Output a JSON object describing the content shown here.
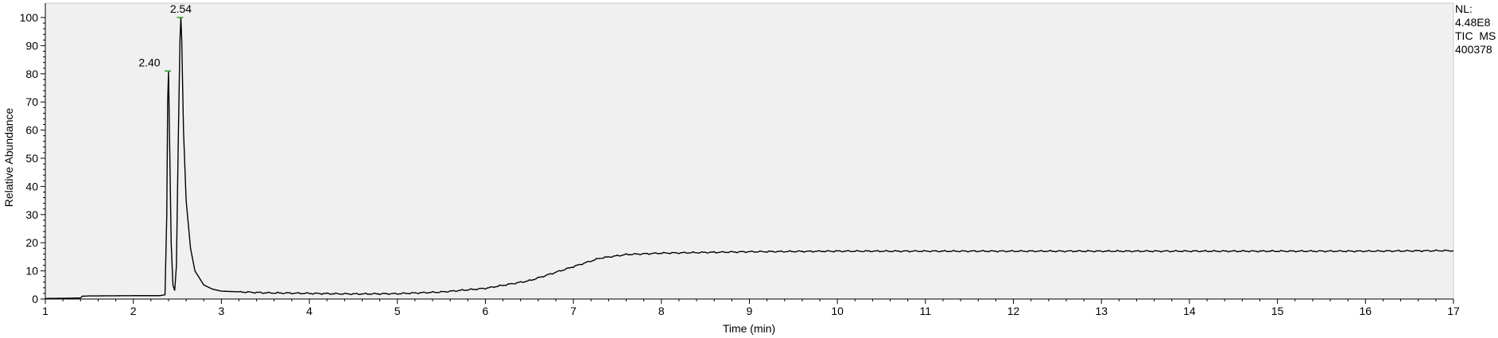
{
  "chart_data": {
    "type": "line",
    "xlabel": "Time (min)",
    "ylabel": "Relative Abundance",
    "xlim": [
      1,
      17
    ],
    "ylim": [
      0,
      100
    ],
    "x_ticks": [
      "1",
      "2",
      "3",
      "4",
      "5",
      "6",
      "7",
      "8",
      "9",
      "10",
      "11",
      "12",
      "13",
      "14",
      "15",
      "16",
      "17"
    ],
    "y_ticks": [
      "0",
      "10",
      "20",
      "30",
      "40",
      "50",
      "60",
      "70",
      "80",
      "90",
      "100"
    ],
    "grid": false,
    "colors": {
      "plot_background": "#f0f0f0",
      "trace": "#000000",
      "axis": "#000000",
      "peak_marker": "#2ca02c"
    },
    "info": [
      "NL:",
      "4.48E8",
      "TIC  MS",
      "400378"
    ],
    "peaks": [
      {
        "x": 2.4,
        "y": 81,
        "label": "2.40"
      },
      {
        "x": 2.54,
        "y": 100,
        "label": "2.54"
      }
    ],
    "series": [
      {
        "values": [
          [
            1.0,
            0.2
          ],
          [
            1.3,
            0.3
          ],
          [
            1.4,
            0.4
          ],
          [
            1.42,
            1.0
          ],
          [
            1.5,
            1.1
          ],
          [
            2.0,
            1.2
          ],
          [
            2.3,
            1.2
          ],
          [
            2.36,
            1.5
          ],
          [
            2.38,
            30
          ],
          [
            2.39,
            70
          ],
          [
            2.4,
            81
          ],
          [
            2.41,
            60
          ],
          [
            2.43,
            20
          ],
          [
            2.45,
            5
          ],
          [
            2.47,
            3
          ],
          [
            2.49,
            12
          ],
          [
            2.51,
            55
          ],
          [
            2.53,
            92
          ],
          [
            2.54,
            100
          ],
          [
            2.55,
            92
          ],
          [
            2.57,
            60
          ],
          [
            2.6,
            35
          ],
          [
            2.65,
            18
          ],
          [
            2.7,
            10
          ],
          [
            2.8,
            5
          ],
          [
            2.9,
            3.5
          ],
          [
            3.0,
            2.8
          ],
          [
            3.5,
            2.2
          ],
          [
            4.0,
            2.0
          ],
          [
            4.5,
            1.8
          ],
          [
            5.0,
            1.9
          ],
          [
            5.5,
            2.5
          ],
          [
            6.0,
            3.8
          ],
          [
            6.5,
            6.5
          ],
          [
            7.0,
            11.5
          ],
          [
            7.3,
            14.5
          ],
          [
            7.6,
            15.8
          ],
          [
            8.0,
            16.3
          ],
          [
            9.0,
            16.8
          ],
          [
            10.0,
            17.0
          ],
          [
            11.0,
            17.0
          ],
          [
            12.0,
            17.0
          ],
          [
            13.0,
            17.0
          ],
          [
            14.0,
            17.0
          ],
          [
            15.0,
            17.0
          ],
          [
            16.0,
            17.0
          ],
          [
            17.0,
            17.2
          ]
        ]
      }
    ]
  }
}
